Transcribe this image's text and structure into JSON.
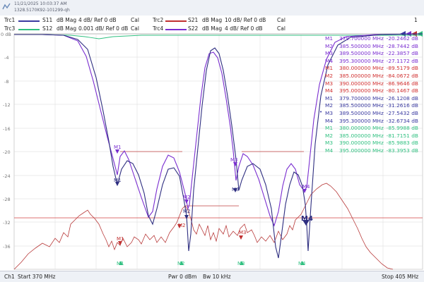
{
  "header": {
    "date": "11/21/2025 10:03:37 AM",
    "serial": "1328.5170K92-101299-qh",
    "channel_number": "1"
  },
  "traces": [
    {
      "id": "Trc1",
      "param": "S11",
      "format": "dB Mag",
      "scale": "4 dB/ Ref 0 dB",
      "channel": "Cal",
      "color": "#3a3aa0"
    },
    {
      "id": "Trc2",
      "param": "S21",
      "format": "dB Mag",
      "scale": "10 dB/ Ref 0 dB",
      "channel": "Cal",
      "color": "#c03030"
    },
    {
      "id": "Trc3",
      "param": "S12",
      "format": "dB Mag",
      "scale": "0.001 dB/ Ref 0 dB",
      "channel": "Cal",
      "color": "#30c080"
    },
    {
      "id": "Trc4",
      "param": "S22",
      "format": "dB Mag",
      "scale": "4 dB/ Ref 0 dB",
      "channel": "Cal",
      "color": "#7a2ed0"
    }
  ],
  "plot": {
    "ref_label": "0 dB",
    "y_ticks": [
      "-4",
      "-8",
      "-12",
      "-16",
      "-20",
      "-24",
      "-28",
      "-32",
      "-36"
    ],
    "marker_labels": [
      "M1",
      "M2",
      "M3",
      "M4"
    ]
  },
  "marker_table": [
    {
      "m": "M1",
      "freq": "379.700000 MHz",
      "val": "-20.2462 dB",
      "color": "#7a2ed0"
    },
    {
      "m": "M2",
      "freq": "385.500000 MHz",
      "val": "-28.7442 dB",
      "color": "#7a2ed0"
    },
    {
      "m": "M3",
      "freq": "389.500000 MHz",
      "val": "-22.3857 dB",
      "color": "#7a2ed0"
    },
    {
      "m": "M4",
      "freq": "395.300000 MHz",
      "val": "-27.1172 dB",
      "color": "#7a2ed0"
    },
    {
      "m": "M1",
      "freq": "380.000000 MHz",
      "val": "-89.5179 dB",
      "color": "#d03030"
    },
    {
      "m": "M2",
      "freq": "385.000000 MHz",
      "val": "-84.0672 dB",
      "color": "#d03030"
    },
    {
      "m": "M3",
      "freq": "390.000000 MHz",
      "val": "-86.9646 dB",
      "color": "#d03030"
    },
    {
      "m": "M4",
      "freq": "395.000000 MHz",
      "val": "-80.1467 dB",
      "color": "#d03030"
    },
    {
      "m": "M1",
      "freq": "379.700000 MHz",
      "val": "-26.1208 dB",
      "color": "#3a3aa0"
    },
    {
      "m": "M2",
      "freq": "385.500000 MHz",
      "val": "-31.2616 dB",
      "color": "#3a3aa0"
    },
    {
      "m": "M3",
      "freq": "389.500000 MHz",
      "val": "-27.5432 dB",
      "color": "#3a3aa0"
    },
    {
      "m": "M4",
      "freq": "395.300000 MHz",
      "val": "-32.6734 dB",
      "color": "#3a3aa0"
    },
    {
      "m": "M1",
      "freq": "380.000000 MHz",
      "val": "-85.9988 dB",
      "color": "#30c080"
    },
    {
      "m": "M2",
      "freq": "385.000000 MHz",
      "val": "-81.7151 dB",
      "color": "#30c080"
    },
    {
      "m": "M3",
      "freq": "390.000000 MHz",
      "val": "-85.9883 dB",
      "color": "#30c080"
    },
    {
      "m": "M4",
      "freq": "395.000000 MHz",
      "val": "-83.3953 dB",
      "color": "#30c080"
    }
  ],
  "footer": {
    "channel": "Ch1",
    "start": "Start  370 MHz",
    "power": "Pwr  0 dBm",
    "bw": "Bw  10 kHz",
    "stop": "Stop  405 MHz"
  },
  "colors": {
    "s11": "#3a3aa0",
    "s21": "#c03030",
    "s12": "#30c080",
    "s22": "#7a2ed0",
    "grid": "#d8d8d8"
  }
}
